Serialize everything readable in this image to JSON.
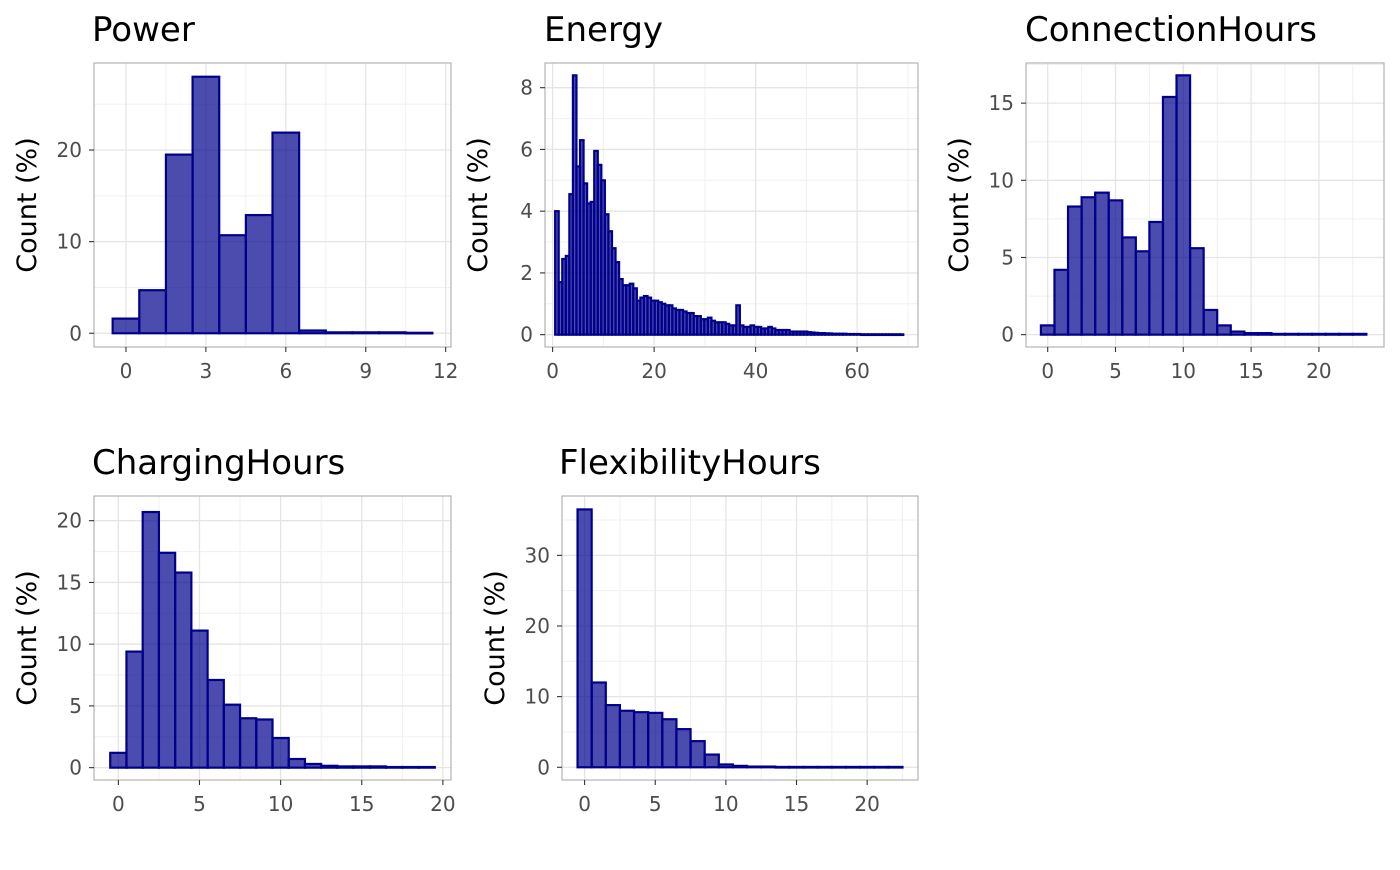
{
  "colors": {
    "fill": "#00008B",
    "fill_opacity": 0.7,
    "stroke": "#00008B",
    "grid": "#e5e5e5",
    "panel_border": "#b3b3b3",
    "tick_text": "#4d4d4d"
  },
  "chart_data": [
    {
      "type": "bar",
      "title": "Power",
      "ylabel": "Count (%)",
      "xlabel": "",
      "xlim": [
        -1.2,
        12.2
      ],
      "ylim": [
        -1.5,
        29.5
      ],
      "xticks": [
        0,
        3,
        6,
        9,
        12
      ],
      "yticks": [
        0,
        10,
        20
      ],
      "bins": {
        "start": -0.5,
        "width": 1,
        "values": [
          1.6,
          4.7,
          19.5,
          28.0,
          10.7,
          12.9,
          21.9,
          0.3,
          0.1,
          0.1,
          0.1,
          0.05
        ]
      },
      "grid": true
    },
    {
      "type": "bar",
      "title": "Energy",
      "ylabel": "Count (%)",
      "xlabel": "",
      "xlim": [
        -1.5,
        72
      ],
      "ylim": [
        -0.4,
        8.8
      ],
      "xticks": [
        0,
        20,
        40,
        60
      ],
      "yticks": [
        0,
        2,
        4,
        6,
        8
      ],
      "bins": {
        "start": 0.5,
        "width": 0.7,
        "values": [
          4.0,
          1.7,
          2.45,
          2.55,
          4.55,
          8.4,
          5.45,
          6.3,
          4.9,
          4.25,
          4.3,
          5.95,
          5.5,
          5.0,
          3.9,
          3.35,
          2.8,
          2.35,
          1.8,
          1.6,
          1.6,
          1.65,
          1.5,
          1.1,
          1.2,
          1.25,
          1.2,
          1.1,
          1.1,
          1.05,
          1.0,
          0.95,
          0.95,
          0.85,
          0.8,
          0.8,
          0.75,
          0.7,
          0.7,
          0.6,
          0.6,
          0.5,
          0.5,
          0.55,
          0.45,
          0.4,
          0.4,
          0.4,
          0.35,
          0.3,
          0.3,
          0.95,
          0.3,
          0.25,
          0.25,
          0.3,
          0.25,
          0.25,
          0.2,
          0.2,
          0.25,
          0.2,
          0.15,
          0.15,
          0.15,
          0.15,
          0.1,
          0.1,
          0.1,
          0.1,
          0.1,
          0.08,
          0.07,
          0.06,
          0.05,
          0.05,
          0.04,
          0.04,
          0.03,
          0.03,
          0.03,
          0.03,
          0.02,
          0.02,
          0.02,
          0.02,
          0.01,
          0.01,
          0.01,
          0.01,
          0.01,
          0.01,
          0.01,
          0.01,
          0.01,
          0.01,
          0.01,
          0.01
        ]
      },
      "grid": true
    },
    {
      "type": "bar",
      "title": "ConnectionHours",
      "ylabel": "Count (%)",
      "xlabel": "",
      "xlim": [
        -1.6,
        24.8
      ],
      "ylim": [
        -0.8,
        17.6
      ],
      "xticks": [
        0,
        5,
        10,
        15,
        20
      ],
      "yticks": [
        0,
        5,
        10,
        15
      ],
      "bins": {
        "start": -0.5,
        "width": 1,
        "values": [
          0.6,
          4.2,
          8.3,
          8.9,
          9.2,
          8.7,
          6.3,
          5.4,
          7.3,
          15.4,
          16.8,
          5.6,
          1.6,
          0.6,
          0.2,
          0.1,
          0.1,
          0.05,
          0.05,
          0.05,
          0.05,
          0.05,
          0.05,
          0.05
        ]
      },
      "grid": true
    },
    {
      "type": "bar",
      "title": "ChargingHours",
      "ylabel": "Count (%)",
      "xlabel": "",
      "xlim": [
        -1.5,
        20.5
      ],
      "ylim": [
        -1.0,
        22.0
      ],
      "xticks": [
        0,
        5,
        10,
        15,
        20
      ],
      "yticks": [
        0,
        5,
        10,
        15,
        20
      ],
      "bins": {
        "start": -0.5,
        "width": 1,
        "values": [
          1.2,
          9.4,
          20.7,
          17.4,
          15.8,
          11.1,
          7.1,
          5.1,
          4.0,
          3.9,
          2.4,
          0.7,
          0.3,
          0.15,
          0.1,
          0.1,
          0.1,
          0.05,
          0.05,
          0.05
        ]
      },
      "grid": true
    },
    {
      "type": "bar",
      "title": "FlexibilityHours",
      "ylabel": "Count (%)",
      "xlabel": "",
      "xlim": [
        -1.6,
        23.6
      ],
      "ylim": [
        -1.8,
        38.4
      ],
      "xticks": [
        0,
        5,
        10,
        15,
        20
      ],
      "yticks": [
        0,
        10,
        20,
        30
      ],
      "bins": {
        "start": -0.5,
        "width": 1,
        "values": [
          36.5,
          12.0,
          8.8,
          8.0,
          7.8,
          7.7,
          6.8,
          5.4,
          3.7,
          1.8,
          0.4,
          0.2,
          0.1,
          0.1,
          0.05,
          0.05,
          0.05,
          0.05,
          0.05,
          0.05,
          0.05,
          0.05,
          0.05
        ]
      },
      "grid": true
    }
  ]
}
